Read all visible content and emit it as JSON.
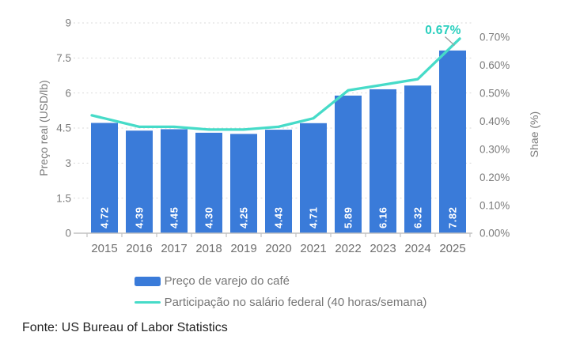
{
  "figure": {
    "footer": "Fonte: US Bureau of Labor Statistics"
  },
  "chart_data": {
    "type": "combo",
    "title": "",
    "categories": [
      "2015",
      "2016",
      "2017",
      "2018",
      "2019",
      "2020",
      "2021",
      "2022",
      "2023",
      "2024",
      "2025"
    ],
    "series": [
      {
        "name": "Preço de varejo do café",
        "type": "bar",
        "axis": "left",
        "color": "#3a7bd9",
        "values": [
          4.72,
          4.39,
          4.45,
          4.3,
          4.25,
          4.43,
          4.71,
          5.89,
          6.16,
          6.32,
          7.82
        ],
        "value_labels": [
          "4.72",
          "4.39",
          "4.45",
          "4.30",
          "4.25",
          "4.43",
          "4.71",
          "5.89",
          "6.16",
          "6.32",
          "7.82"
        ]
      },
      {
        "name": "Participação no salário federal (40 horas/semana)",
        "type": "line",
        "axis": "right",
        "color": "#46dbc8",
        "values_pct": [
          0.41,
          0.38,
          0.38,
          0.37,
          0.37,
          0.38,
          0.41,
          0.51,
          0.53,
          0.55,
          0.67
        ]
      }
    ],
    "left_axis": {
      "label": "Preço real (USD/lb)",
      "ticks": [
        "0",
        "1.5",
        "3",
        "4.5",
        "6",
        "7.5",
        "9"
      ],
      "tick_values": [
        0,
        1.5,
        3,
        4.5,
        6,
        7.5,
        9
      ],
      "range": [
        0,
        9
      ]
    },
    "right_axis": {
      "label": "Shae (%)",
      "ticks": [
        "0.00%",
        "0.10%",
        "0.20%",
        "0.30%",
        "0.40%",
        "0.50%",
        "0.60%",
        "0.70%"
      ],
      "tick_values": [
        0.0,
        0.1,
        0.2,
        0.3,
        0.4,
        0.5,
        0.6,
        0.7
      ],
      "range": [
        0,
        0.75
      ]
    },
    "annotation": {
      "text": "0.67%",
      "category": "2025",
      "value_pct": 0.67
    },
    "grid": "horizontal-dashed",
    "legend_position": "bottom"
  },
  "colors": {
    "bar": "#3a7bd9",
    "line": "#46dbc8",
    "annotation_text": "#29cfbe",
    "gridline": "#dadada",
    "axis_line": "#c2c2c2",
    "tick_text": "#7b7b7b",
    "year_text": "#6f6f6f",
    "bar_label_text": "#ffffff",
    "legend_text": "#757575",
    "footer_text": "#222222"
  }
}
